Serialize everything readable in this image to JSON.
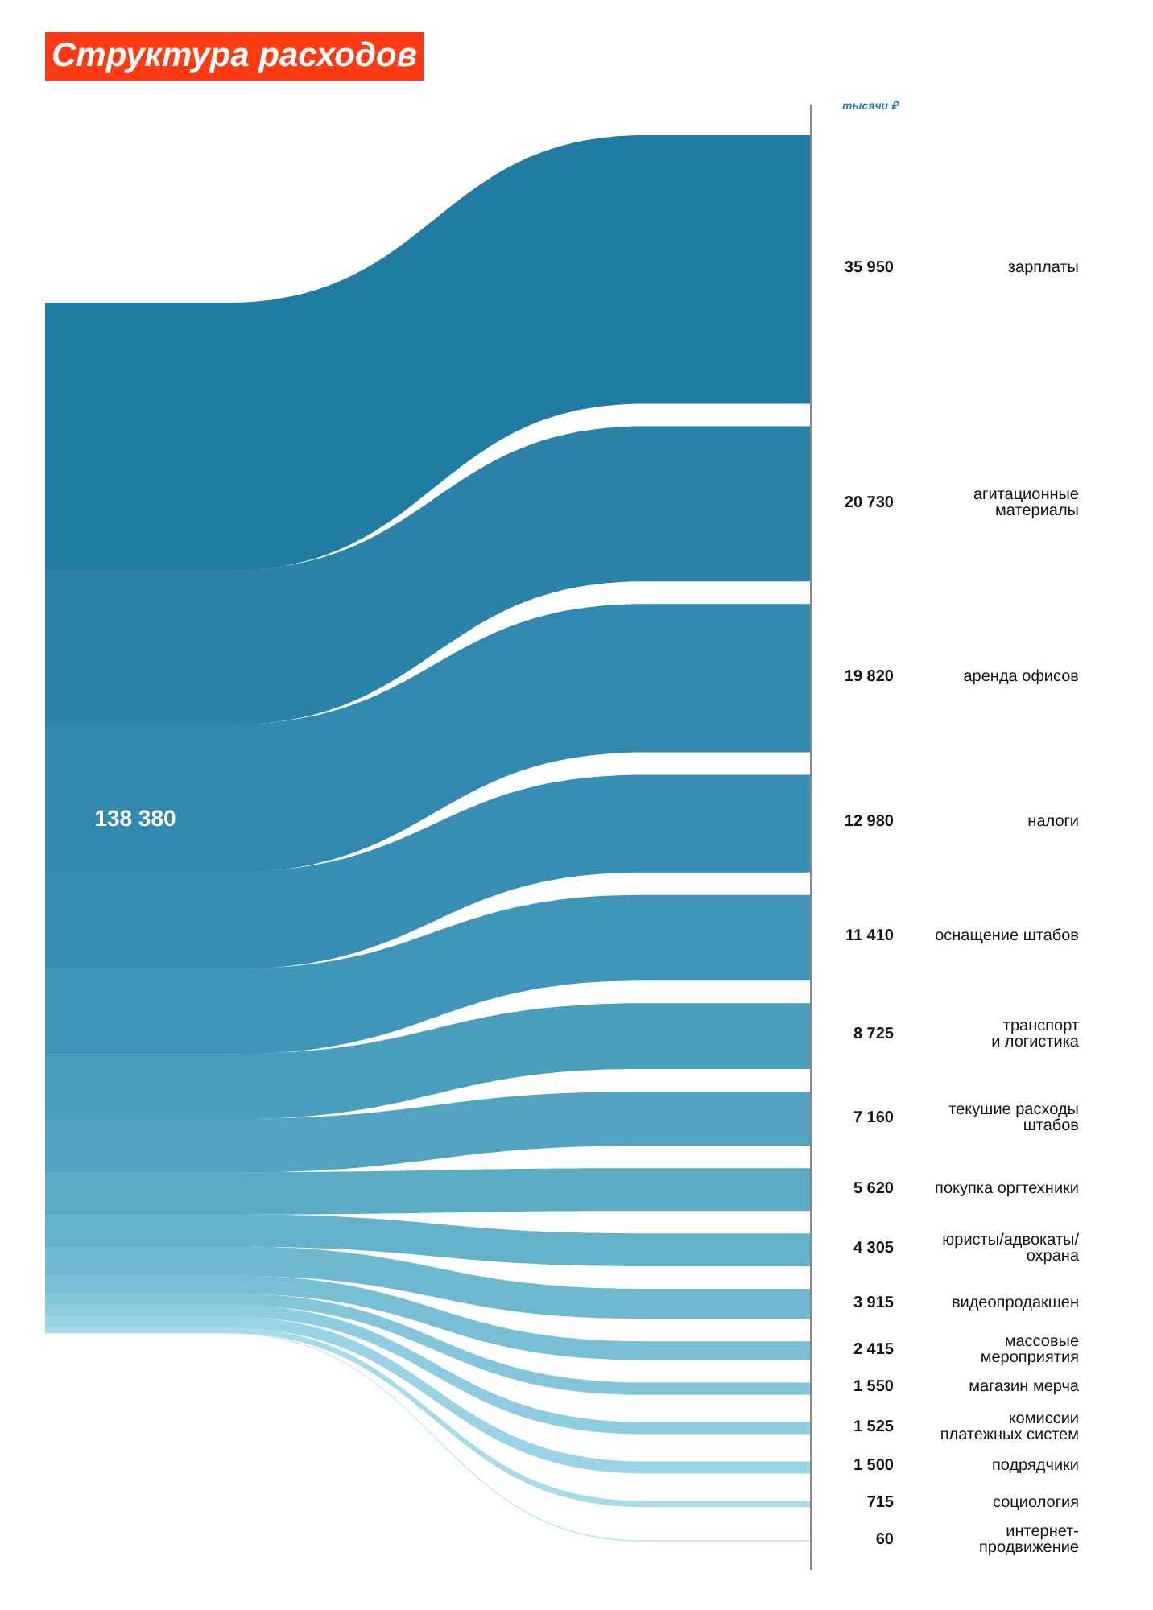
{
  "chart_data": {
    "type": "other",
    "title": "Структура расходов",
    "categories": [
      "зарплаты",
      "агитационные\nматериалы",
      "аренда офисов",
      "налоги",
      "оснащение штабов",
      "транспорт\nи логистика",
      "текушие расходы\nштабов",
      "покупка оргтехники",
      "юристы/адвокаты/\nохрана",
      "видеопродакшен",
      "массовые\nмероприятия",
      "магазин мерча",
      "комиссии\nплатежных систем",
      "подрядчики",
      "социология",
      "интернет-\nпродвижение"
    ],
    "values": [
      35950,
      20730,
      19820,
      12980,
      11410,
      8725,
      7160,
      5620,
      4305,
      3915,
      2415,
      1550,
      1525,
      1500,
      715,
      60
    ],
    "value_labels": [
      "35 950",
      "20 730",
      "19 820",
      "12 980",
      "11 410",
      "8 725",
      "7 160",
      "5 620",
      "4 305",
      "3 915",
      "2 415",
      "1 550",
      "1 525",
      "1 500",
      "715",
      "60"
    ],
    "colors": [
      "#217ca3",
      "#2a84aa",
      "#3189b0",
      "#388fb4",
      "#4096b9",
      "#499dbd",
      "#52a4c2",
      "#5babc6",
      "#64b1cb",
      "#6eb8d0",
      "#78bfd5",
      "#83c6da",
      "#8ecddf",
      "#9ad3e3",
      "#a7dbe8",
      "#b4e2ed"
    ],
    "totals": [
      "138 380"
    ],
    "annotations": [
      "тысячи ₽"
    ]
  }
}
